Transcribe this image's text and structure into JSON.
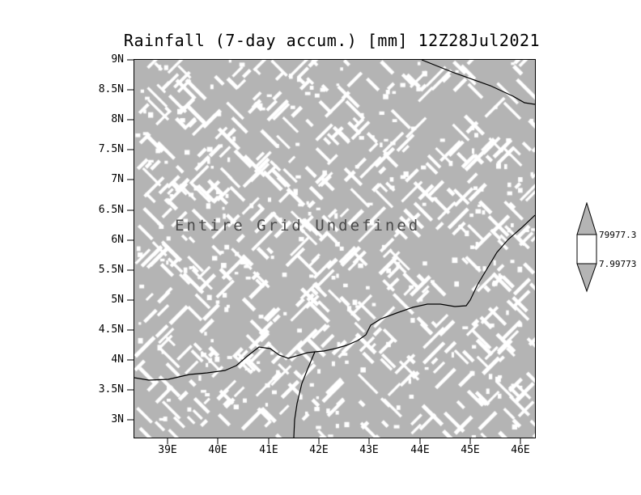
{
  "title": "Rainfall (7-day accum.) [mm] 12Z28Jul2021",
  "plot": {
    "annotation": "Entire Grid Undefined"
  },
  "colorbar": {
    "top_label": "79977.3",
    "bottom_label": "7.99773"
  },
  "chart_data": {
    "type": "heatmap",
    "title": "Rainfall (7-day accum.) [mm] 12Z28Jul2021",
    "variable": "Rainfall (7-day accum.)",
    "units": "mm",
    "valid_time": "12Z28Jul2021",
    "x_tick_labels": [
      "39E",
      "40E",
      "41E",
      "42E",
      "43E",
      "44E",
      "45E",
      "46E"
    ],
    "y_tick_labels": [
      "9N",
      "8.5N",
      "8N",
      "7.5N",
      "7N",
      "6.5N",
      "6N",
      "5.5N",
      "5N",
      "4.5N",
      "4N",
      "3.5N",
      "3N"
    ],
    "x_axis_range": [
      38.3,
      46.3
    ],
    "y_axis_range": [
      2.8,
      9.0
    ],
    "values": "undefined for entire grid",
    "annotation": "Entire Grid Undefined",
    "colorbar_labels": [
      "79977.3",
      "7.99773"
    ],
    "legend_position": "right",
    "grid": false,
    "colors": {
      "undefined_fill": "#b4b4b4",
      "undefined_hatch": "#ffffff",
      "coastline": "#000000",
      "annotation_text": "#4a4a4a"
    }
  }
}
